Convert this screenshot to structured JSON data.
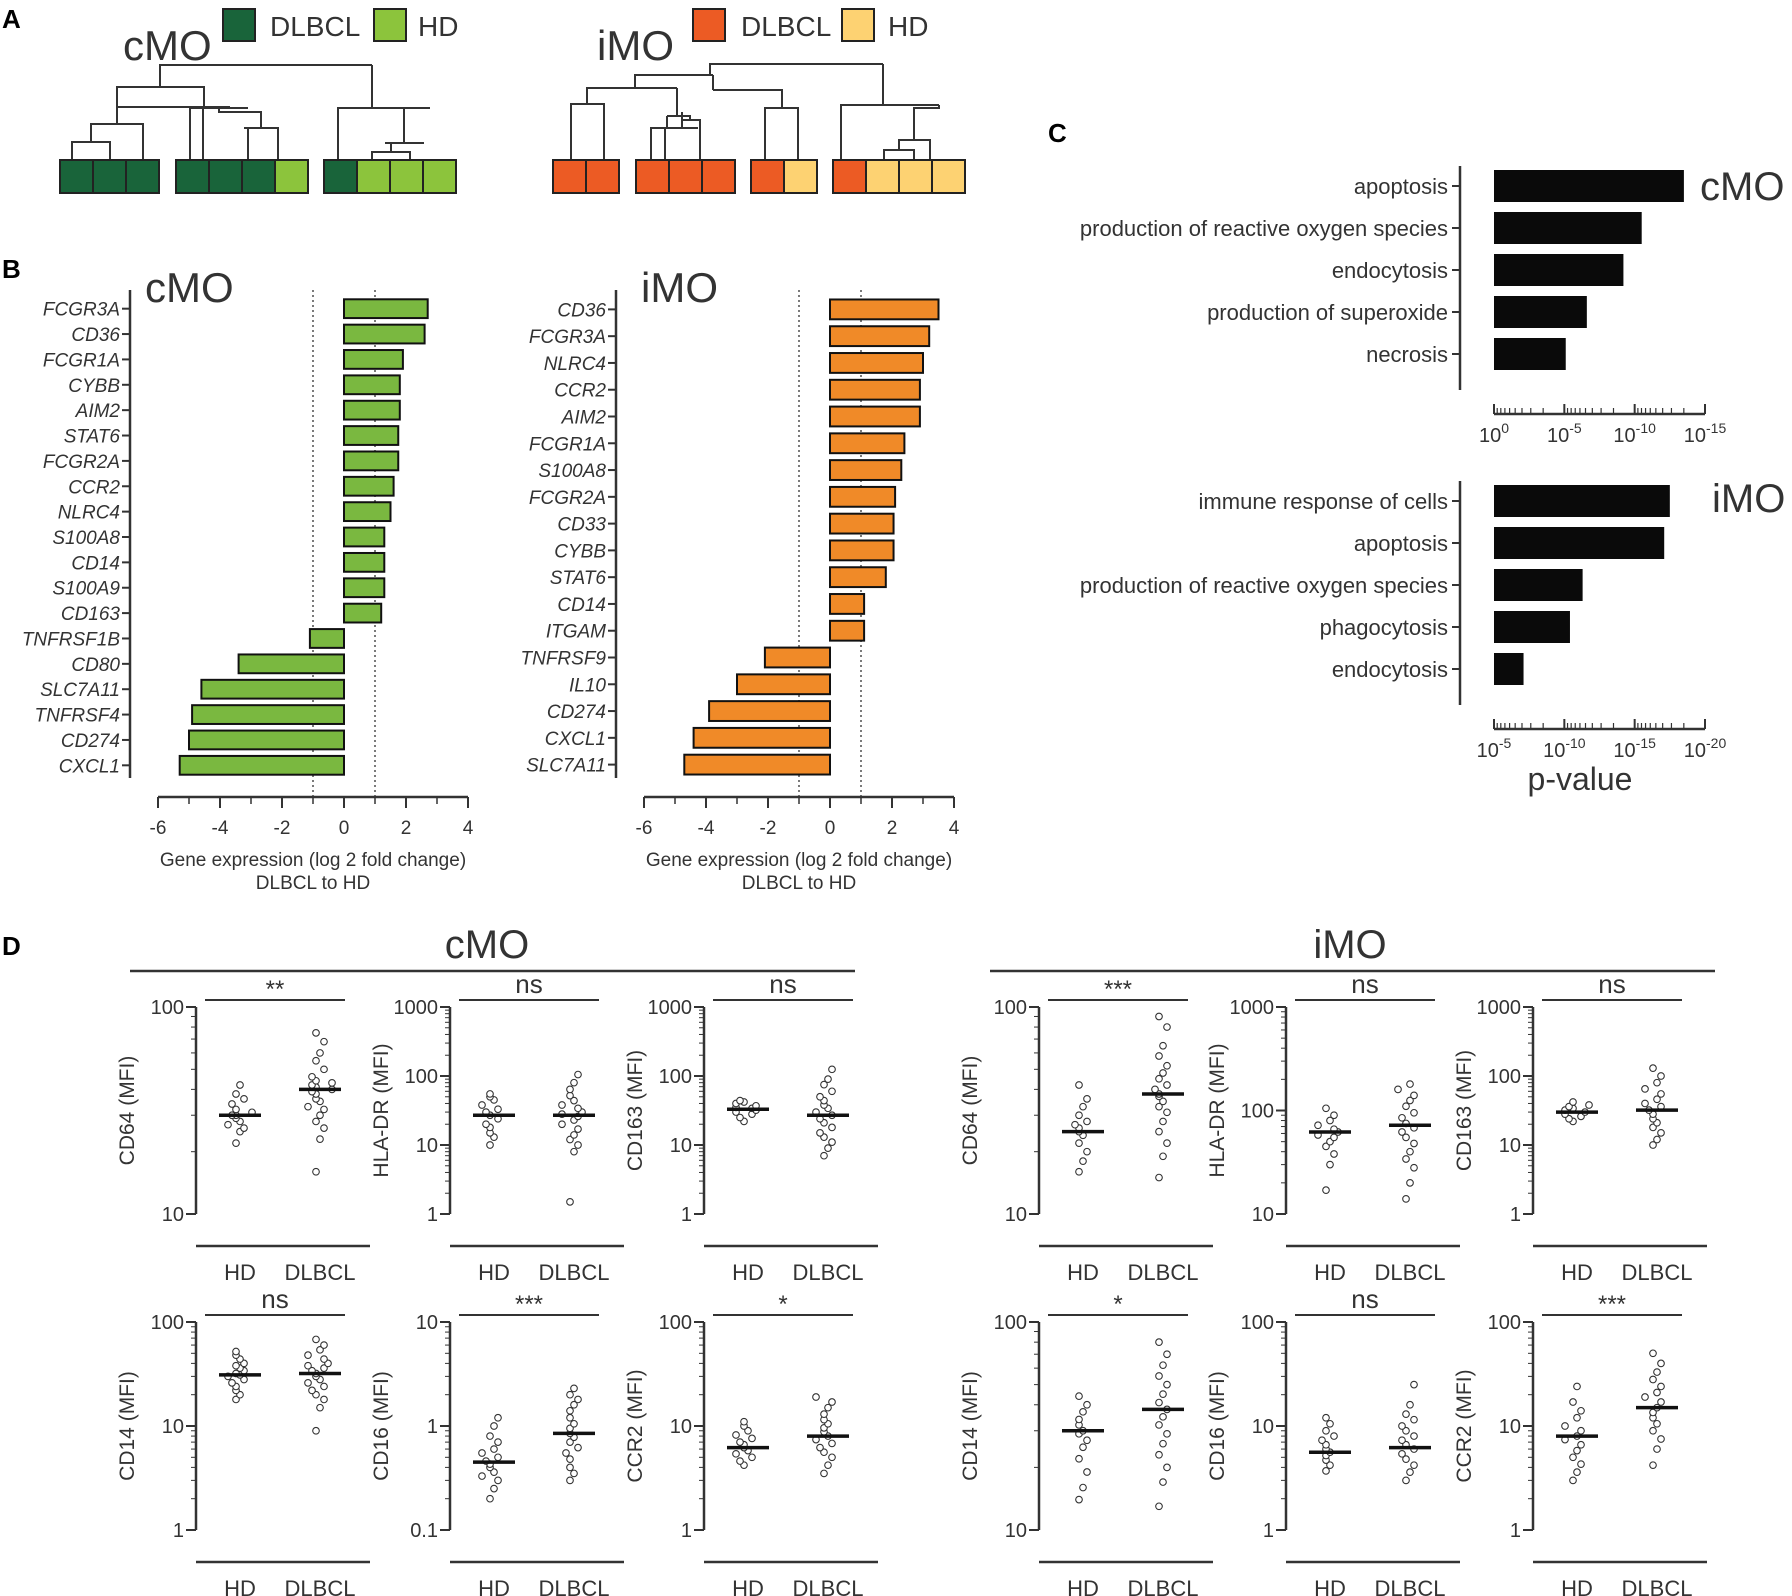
{
  "figure": {
    "panel_labels": [
      "A",
      "B",
      "C",
      "D"
    ]
  },
  "panel_a": {
    "dendrograms": [
      {
        "title": "cMO",
        "legend": [
          {
            "label": "DLBCL",
            "color": "#19643a"
          },
          {
            "label": "HD",
            "color": "#8cc43c"
          }
        ],
        "groups": [
          [
            "DLBCL",
            "DLBCL",
            "DLBCL"
          ],
          [
            "DLBCL",
            "DLBCL",
            "DLBCL",
            "HD"
          ],
          [
            "DLBCL",
            "HD",
            "HD",
            "HD"
          ]
        ]
      },
      {
        "title": "iMO",
        "legend": [
          {
            "label": "DLBCL",
            "color": "#ec5b24"
          },
          {
            "label": "HD",
            "color": "#fdd272"
          }
        ],
        "groups": [
          [
            "DLBCL",
            "DLBCL"
          ],
          [
            "DLBCL",
            "DLBCL",
            "DLBCL"
          ],
          [
            "DLBCL",
            "HD"
          ],
          [
            "DLBCL",
            "HD",
            "HD",
            "HD"
          ]
        ]
      }
    ]
  },
  "chart_data": [
    {
      "type": "bar",
      "orientation": "horizontal",
      "title": "cMO",
      "categories": [
        "FCGR3A",
        "CD36",
        "FCGR1A",
        "CYBB",
        "AIM2",
        "STAT6",
        "FCGR2A",
        "CCR2",
        "NLRC4",
        "S100A8",
        "CD14",
        "S100A9",
        "CD163",
        "TNFRSF1B",
        "CD80",
        "SLC7A11",
        "TNFRSF4",
        "CD274",
        "CXCL1"
      ],
      "values": [
        2.7,
        2.6,
        1.9,
        1.8,
        1.8,
        1.75,
        1.75,
        1.6,
        1.5,
        1.3,
        1.3,
        1.3,
        1.2,
        -1.1,
        -3.4,
        -4.6,
        -4.9,
        -5.0,
        -5.3
      ],
      "xlim": [
        -6,
        4
      ],
      "xticks": [
        -6,
        -4,
        -2,
        0,
        2,
        4
      ],
      "thresholds": [
        -1,
        1
      ],
      "xlabel": "Gene expression (log 2 fold change)",
      "xlabel2": "DLBCL to HD",
      "color": "#7ab840"
    },
    {
      "type": "bar",
      "orientation": "horizontal",
      "title": "iMO",
      "categories": [
        "CD36",
        "FCGR3A",
        "NLRC4",
        "CCR2",
        "AIM2",
        "FCGR1A",
        "S100A8",
        "FCGR2A",
        "CD33",
        "CYBB",
        "STAT6",
        "CD14",
        "ITGAM",
        "TNFRSF9",
        "IL10",
        "CD274",
        "CXCL1",
        "SLC7A11"
      ],
      "values": [
        3.5,
        3.2,
        3.0,
        2.9,
        2.9,
        2.4,
        2.3,
        2.1,
        2.05,
        2.05,
        1.8,
        1.1,
        1.1,
        -2.1,
        -3.0,
        -3.9,
        -4.4,
        -4.7
      ],
      "xlim": [
        -6,
        4
      ],
      "xticks": [
        -6,
        -4,
        -2,
        0,
        2,
        4
      ],
      "thresholds": [
        -1,
        1
      ],
      "xlabel": "Gene expression (log 2 fold change)",
      "xlabel2": "DLBCL to HD",
      "color": "#f08a28"
    },
    {
      "type": "bar",
      "orientation": "horizontal",
      "title": "cMO",
      "categories": [
        "apoptosis",
        "production of reactive oxygen species",
        "endocytosis",
        "production of superoxide",
        "necrosis"
      ],
      "values": [
        13.5,
        10.5,
        9.2,
        6.6,
        5.1
      ],
      "value_unit": "-log10(p-value)",
      "xlim": [
        0,
        15
      ],
      "xticks": [
        0,
        5,
        10,
        15
      ],
      "xtick_labels": [
        {
          "base": "10",
          "exp": "0"
        },
        {
          "base": "10",
          "exp": "-5"
        },
        {
          "base": "10",
          "exp": "-10"
        },
        {
          "base": "10",
          "exp": "-15"
        }
      ],
      "color": "#0a0a0a"
    },
    {
      "type": "bar",
      "orientation": "horizontal",
      "title": "iMO",
      "categories": [
        "immune response of cells",
        "apoptosis",
        "production of reactive oxygen species",
        "phagocytosis",
        "endocytosis"
      ],
      "values": [
        17.5,
        17.1,
        11.3,
        10.4,
        7.1
      ],
      "value_unit": "-log10(p-value)",
      "xlim": [
        5,
        20
      ],
      "xticks": [
        5,
        10,
        15,
        20
      ],
      "xtick_labels": [
        {
          "base": "10",
          "exp": "-5"
        },
        {
          "base": "10",
          "exp": "-10"
        },
        {
          "base": "10",
          "exp": "-15"
        },
        {
          "base": "10",
          "exp": "-20"
        }
      ],
      "xlabel": "p-value",
      "color": "#0a0a0a"
    },
    {
      "type": "scatter",
      "subtype": "dot-plot",
      "group_titles": [
        "cMO",
        "iMO"
      ],
      "categories": [
        "HD",
        "DLBCL"
      ],
      "panels": [
        {
          "cell": "cMO",
          "ylabel": "CD64 (MFI)",
          "ylim": [
            10,
            100
          ],
          "yticks": [
            10,
            100
          ],
          "sig": "**",
          "median": [
            30,
            40
          ],
          "groups": [
            [
              22,
              25,
              26,
              27,
              28,
              29,
              30,
              30,
              31,
              32,
              34,
              36,
              38,
              42
            ],
            [
              16,
              23,
              26,
              28,
              30,
              32,
              33,
              35,
              36,
              38,
              39,
              40,
              41,
              42,
              43,
              44,
              46,
              50,
              55,
              60,
              68,
              75
            ]
          ]
        },
        {
          "cell": "cMO",
          "ylabel": "HLA-DR (MFI)",
          "ylim": [
            1,
            1000
          ],
          "yticks": [
            1,
            10,
            100,
            1000
          ],
          "sig": "ns",
          "median": [
            27,
            27
          ],
          "groups": [
            [
              10,
              13,
              15,
              18,
              20,
              24,
              27,
              30,
              33,
              38,
              45,
              50,
              55
            ],
            [
              1.5,
              8,
              10,
              12,
              14,
              17,
              20,
              23,
              26,
              28,
              30,
              34,
              38,
              44,
              52,
              64,
              80,
              105
            ]
          ]
        },
        {
          "cell": "cMO",
          "ylabel": "CD163 (MFI)",
          "ylim": [
            1,
            1000
          ],
          "yticks": [
            1,
            10,
            100,
            1000
          ],
          "sig": "ns",
          "median": [
            33,
            27
          ],
          "groups": [
            [
              22,
              25,
              28,
              30,
              32,
              34,
              35,
              37,
              40,
              42,
              44
            ],
            [
              7,
              9,
              11,
              13,
              15,
              18,
              21,
              24,
              27,
              30,
              34,
              38,
              44,
              50,
              60,
              75,
              90,
              125
            ]
          ]
        },
        {
          "cell": "iMO",
          "ylabel": "CD64 (MFI)",
          "ylim": [
            10,
            100
          ],
          "yticks": [
            10,
            100
          ],
          "sig": "***",
          "median": [
            25,
            38
          ],
          "groups": [
            [
              16,
              18,
              20,
              22,
              24,
              25,
              26,
              27,
              28,
              30,
              33,
              36,
              42
            ],
            [
              15,
              19,
              22,
              25,
              28,
              31,
              33,
              35,
              37,
              38,
              40,
              42,
              45,
              48,
              52,
              58,
              65,
              80,
              90
            ]
          ]
        },
        {
          "cell": "iMO",
          "ylabel": "HLA-DR (MFI)",
          "ylim": [
            10,
            1000
          ],
          "yticks": [
            10,
            100,
            1000
          ],
          "sig": "ns",
          "median": [
            62,
            72
          ],
          "groups": [
            [
              17,
              30,
              38,
              45,
              50,
              55,
              58,
              62,
              66,
              72,
              80,
              90,
              105
            ],
            [
              14,
              20,
              28,
              34,
              40,
              48,
              55,
              62,
              68,
              75,
              85,
              95,
              110,
              125,
              140,
              160,
              180
            ]
          ]
        },
        {
          "cell": "iMO",
          "ylabel": "CD163 (MFI)",
          "ylim": [
            1,
            1000
          ],
          "yticks": [
            1,
            10,
            100,
            1000
          ],
          "sig": "ns",
          "median": [
            30,
            32
          ],
          "groups": [
            [
              22,
              24,
              26,
              28,
              30,
              32,
              34,
              36,
              38,
              42
            ],
            [
              10,
              12,
              15,
              18,
              21,
              24,
              28,
              32,
              36,
              40,
              46,
              55,
              65,
              80,
              100,
              130
            ]
          ]
        },
        {
          "cell": "cMO",
          "ylabel": "CD14 (MFI)",
          "ylim": [
            1,
            100
          ],
          "yticks": [
            1,
            10,
            100
          ],
          "sig": "ns",
          "median": [
            31,
            32
          ],
          "groups": [
            [
              18,
              20,
              22,
              24,
              26,
              28,
              30,
              31,
              32,
              34,
              36,
              38,
              40,
              44,
              48,
              52
            ],
            [
              9,
              15,
              18,
              20,
              22,
              24,
              26,
              28,
              30,
              32,
              34,
              36,
              38,
              40,
              44,
              48,
              54,
              60,
              68
            ]
          ]
        },
        {
          "cell": "cMO",
          "ylabel": "CD16 (MFI)",
          "ylim": [
            0.1,
            10
          ],
          "yticks": [
            0.1,
            1,
            10
          ],
          "sig": "***",
          "median": [
            0.45,
            0.85
          ],
          "groups": [
            [
              0.2,
              0.25,
              0.3,
              0.33,
              0.36,
              0.4,
              0.43,
              0.46,
              0.5,
              0.55,
              0.6,
              0.7,
              0.8,
              1.0,
              1.2
            ],
            [
              0.3,
              0.35,
              0.4,
              0.48,
              0.55,
              0.62,
              0.7,
              0.78,
              0.85,
              0.95,
              1.05,
              1.2,
              1.4,
              1.6,
              1.8,
              2.0,
              2.3
            ]
          ]
        },
        {
          "cell": "cMO",
          "ylabel": "CCR2 (MFI)",
          "ylim": [
            1,
            100
          ],
          "yticks": [
            1,
            10,
            100
          ],
          "sig": "*",
          "median": [
            6.2,
            8
          ],
          "groups": [
            [
              4.2,
              4.6,
              5,
              5.4,
              5.8,
              6.2,
              6.6,
              7,
              7.6,
              8.2,
              9,
              10,
              11
            ],
            [
              3.5,
              4.2,
              5,
              5.6,
              6.2,
              6.8,
              7.4,
              8,
              8.8,
              9.6,
              10.5,
              11.5,
              13,
              15,
              17,
              19
            ]
          ]
        },
        {
          "cell": "iMO",
          "ylabel": "CD14 (MFI)",
          "ylim": [
            10,
            100
          ],
          "yticks": [
            10,
            100
          ],
          "sig": "*",
          "median": [
            30,
            38
          ],
          "groups": [
            [
              14,
              16,
              19,
              22,
              25,
              27,
              29,
              30,
              32,
              34,
              37,
              40,
              44
            ],
            [
              13,
              17,
              20,
              23,
              26,
              29,
              32,
              35,
              38,
              41,
              45,
              50,
              55,
              62,
              70,
              80
            ]
          ]
        },
        {
          "cell": "iMO",
          "ylabel": "CD16 (MFI)",
          "ylim": [
            1,
            100
          ],
          "yticks": [
            1,
            10,
            100
          ],
          "sig": "ns",
          "median": [
            5.6,
            6.2
          ],
          "groups": [
            [
              3.7,
              4.2,
              4.7,
              5.2,
              5.6,
              6,
              6.6,
              7.3,
              8,
              9,
              10.5,
              12
            ],
            [
              3,
              3.6,
              4.2,
              4.8,
              5.4,
              6,
              6.6,
              7.3,
              8,
              9,
              10,
              11.5,
              13,
              16,
              25
            ]
          ]
        },
        {
          "cell": "iMO",
          "ylabel": "CCR2 (MFI)",
          "ylim": [
            1,
            100
          ],
          "yticks": [
            1,
            10,
            100
          ],
          "sig": "***",
          "median": [
            8,
            15
          ],
          "groups": [
            [
              3,
              3.6,
              4.3,
              5,
              5.8,
              6.6,
              7.4,
              8,
              9,
              10,
              12,
              14,
              17,
              24
            ],
            [
              4.2,
              6,
              7.5,
              9,
              10.5,
              12,
              13.5,
              15,
              17,
              19,
              21,
              24,
              28,
              33,
              40,
              50
            ]
          ]
        }
      ]
    }
  ]
}
